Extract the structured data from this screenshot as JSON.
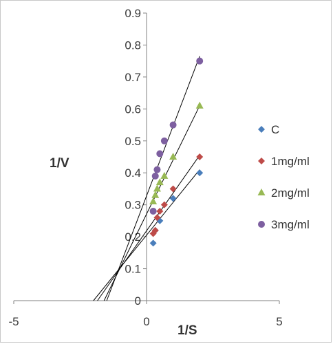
{
  "chart_data": {
    "type": "scatter",
    "title": "",
    "xlabel": "1/S",
    "ylabel": "1/V",
    "xlim": [
      -5,
      5
    ],
    "ylim": [
      0,
      0.9
    ],
    "x_ticks": [
      "-5",
      "0",
      "5"
    ],
    "y_ticks": [
      "0",
      "0.1",
      "0.2",
      "0.3",
      "0.4",
      "0.5",
      "0.6",
      "0.7",
      "0.8",
      "0.9"
    ],
    "grid": false,
    "legend_position": "right",
    "series": [
      {
        "name": "C",
        "color": "#4a7ebb",
        "marker": "diamond",
        "x": [
          0.25,
          0.33,
          0.5,
          1.0,
          2.0
        ],
        "y": [
          0.18,
          0.22,
          0.25,
          0.32,
          0.4
        ],
        "trendline": {
          "x": [
            -2.0,
            2.0
          ],
          "y": [
            0.0,
            0.41
          ]
        }
      },
      {
        "name": "1mg/ml",
        "color": "#be4b48",
        "marker": "diamond",
        "x": [
          0.25,
          0.33,
          0.4,
          0.5,
          0.67,
          1.0,
          2.0
        ],
        "y": [
          0.21,
          0.22,
          0.26,
          0.28,
          0.3,
          0.35,
          0.45
        ],
        "trendline": {
          "x": [
            -1.85,
            2.0
          ],
          "y": [
            0.0,
            0.455
          ]
        }
      },
      {
        "name": "2mg/ml",
        "color": "#98b954",
        "marker": "triangle",
        "x": [
          0.25,
          0.33,
          0.4,
          0.5,
          0.67,
          1.0,
          2.0
        ],
        "y": [
          0.31,
          0.33,
          0.35,
          0.37,
          0.39,
          0.45,
          0.61
        ],
        "trendline": {
          "x": [
            -1.6,
            2.0
          ],
          "y": [
            0.0,
            0.61
          ]
        }
      },
      {
        "name": "3mg/ml",
        "color": "#7d5fa0",
        "marker": "circle",
        "x": [
          0.25,
          0.33,
          0.4,
          0.5,
          0.67,
          1.0,
          2.0
        ],
        "y": [
          0.28,
          0.39,
          0.41,
          0.46,
          0.5,
          0.55,
          0.75
        ],
        "trendline": {
          "x": [
            -1.5,
            2.0
          ],
          "y": [
            0.0,
            0.765
          ]
        }
      }
    ]
  }
}
